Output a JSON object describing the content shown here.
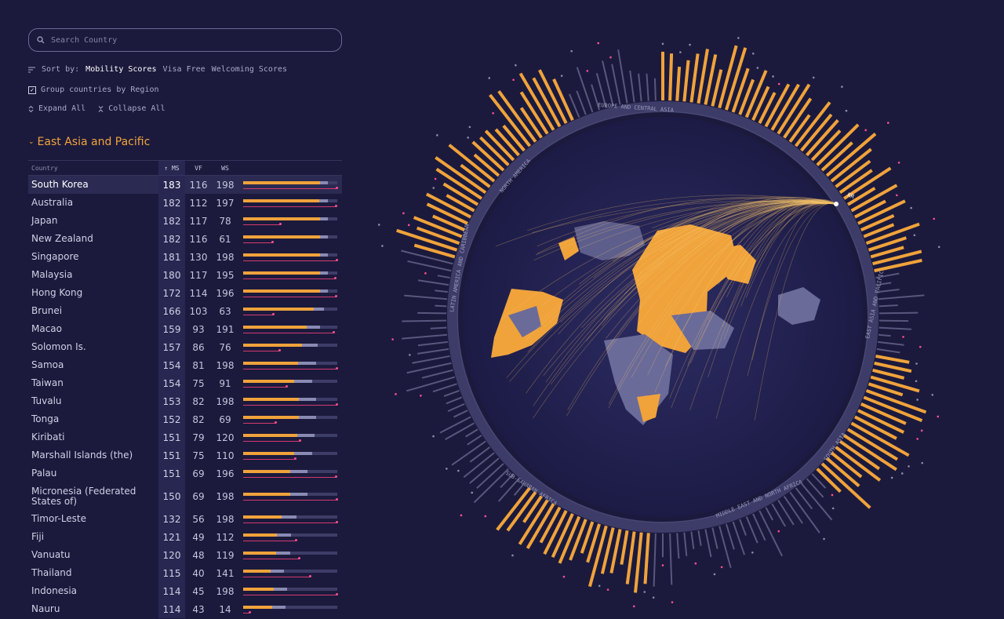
{
  "search": {
    "placeholder": "Search Country"
  },
  "sort": {
    "label": "Sort by:",
    "options": [
      "Mobility Scores",
      "Visa Free",
      "Welcoming Scores"
    ]
  },
  "group": {
    "label": "Group countries by Region"
  },
  "expand_label": "Expand All",
  "collapse_label": "Collapse All",
  "region_title": "East Asia and Pacific",
  "table": {
    "headers": {
      "country": "Country",
      "ms": "↑ MS",
      "vf": "VF",
      "ws": "WS"
    },
    "rows": [
      {
        "name": "South Korea",
        "ms": 183,
        "vf": 116,
        "ws": 198
      },
      {
        "name": "Australia",
        "ms": 182,
        "vf": 112,
        "ws": 197
      },
      {
        "name": "Japan",
        "ms": 182,
        "vf": 117,
        "ws": 78
      },
      {
        "name": "New Zealand",
        "ms": 182,
        "vf": 116,
        "ws": 61
      },
      {
        "name": "Singapore",
        "ms": 181,
        "vf": 130,
        "ws": 198
      },
      {
        "name": "Malaysia",
        "ms": 180,
        "vf": 117,
        "ws": 195
      },
      {
        "name": "Hong Kong",
        "ms": 172,
        "vf": 114,
        "ws": 196
      },
      {
        "name": "Brunei",
        "ms": 166,
        "vf": 103,
        "ws": 63
      },
      {
        "name": "Macao",
        "ms": 159,
        "vf": 93,
        "ws": 191
      },
      {
        "name": "Solomon Is.",
        "ms": 157,
        "vf": 86,
        "ws": 76
      },
      {
        "name": "Samoa",
        "ms": 154,
        "vf": 81,
        "ws": 198
      },
      {
        "name": "Taiwan",
        "ms": 154,
        "vf": 75,
        "ws": 91
      },
      {
        "name": "Tuvalu",
        "ms": 153,
        "vf": 82,
        "ws": 198
      },
      {
        "name": "Tonga",
        "ms": 152,
        "vf": 82,
        "ws": 69
      },
      {
        "name": "Kiribati",
        "ms": 151,
        "vf": 79,
        "ws": 120
      },
      {
        "name": "Marshall Islands (the)",
        "ms": 151,
        "vf": 75,
        "ws": 110
      },
      {
        "name": "Palau",
        "ms": 151,
        "vf": 69,
        "ws": 196
      },
      {
        "name": "Micronesia (Federated States of)",
        "ms": 150,
        "vf": 69,
        "ws": 198
      },
      {
        "name": "Timor-Leste",
        "ms": 132,
        "vf": 56,
        "ws": 198
      },
      {
        "name": "Fiji",
        "ms": 121,
        "vf": 49,
        "ws": 112
      },
      {
        "name": "Vanuatu",
        "ms": 120,
        "vf": 48,
        "ws": 119
      },
      {
        "name": "Thailand",
        "ms": 115,
        "vf": 40,
        "ws": 141
      },
      {
        "name": "Indonesia",
        "ms": 114,
        "vf": 45,
        "ws": 198
      },
      {
        "name": "Nauru",
        "ms": 114,
        "vf": 43,
        "ws": 14
      }
    ]
  },
  "ring": {
    "regions": [
      "EUROPE AND CENTRAL ASIA",
      "EAST ASIA AND PACIFIC",
      "SOUTH ASIA",
      "MIDDLE EAST AND NORTH AFRICA",
      "SUB-SAHARAN AFRICA",
      "LATIN AMERICA AND CARIBBEAN",
      "NORTH AMERICA"
    ],
    "selected_code": "KR"
  },
  "colors": {
    "ms": "#f0a33b",
    "vf": "#8a8bb2",
    "ws": "#d33a6e",
    "bg": "#1b1a3d"
  }
}
